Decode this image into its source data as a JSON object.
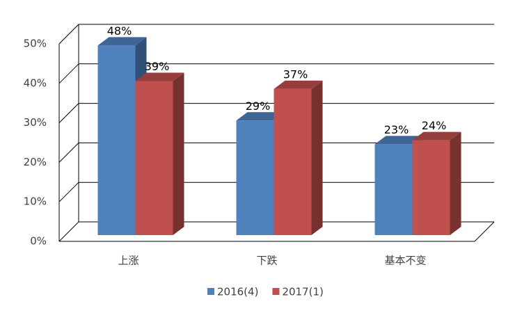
{
  "chart_data": {
    "type": "bar3d",
    "categories": [
      "上涨",
      "下跌",
      "基本不变"
    ],
    "series": [
      {
        "name": "2016(4)",
        "color": "#4f81bd",
        "values": [
          48,
          29,
          23
        ],
        "value_labels": [
          "48%",
          "29%",
          "23%"
        ]
      },
      {
        "name": "2017(1)",
        "color": "#c0504d",
        "values": [
          39,
          37,
          24
        ],
        "value_labels": [
          "39%",
          "37%",
          "24%"
        ]
      }
    ],
    "ylim": [
      0,
      50
    ],
    "yticks": [
      {
        "value": 0,
        "label": "0%"
      },
      {
        "value": 10,
        "label": "10%"
      },
      {
        "value": 20,
        "label": "20%"
      },
      {
        "value": 30,
        "label": "30%"
      },
      {
        "value": 40,
        "label": "40%"
      },
      {
        "value": 50,
        "label": "50%"
      }
    ],
    "grid": true,
    "legend": "bottom"
  }
}
